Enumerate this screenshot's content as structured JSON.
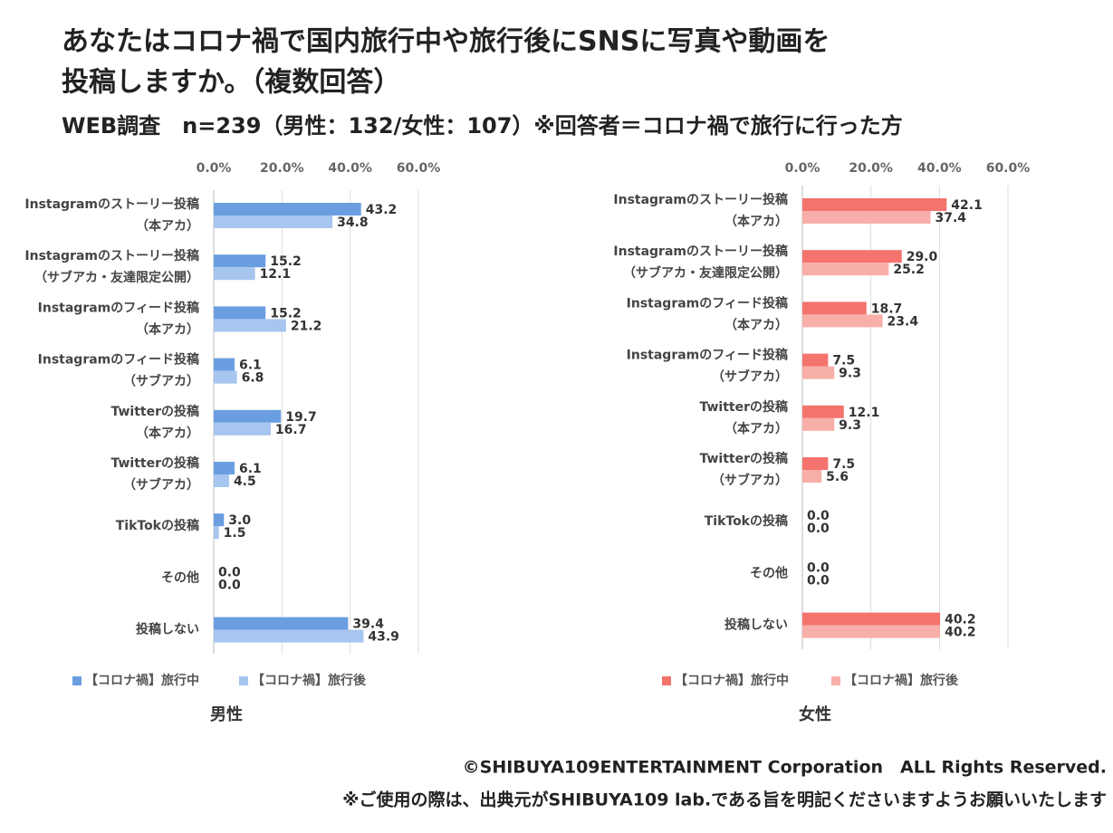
{
  "header": {
    "title_lines": [
      "あなたはコロナ禍で国内旅行中や旅行後にSNSに写真や動画を",
      "投稿しますか。（複数回答）"
    ],
    "subtitle": "WEB調査　n=239（男性：132/女性：107）※回答者＝コロナ禍で旅行に行った方"
  },
  "footer": [
    "©SHIBUYA109ENTERTAINMENT Corporation　ALL Rights Reserved.",
    "※ご使用の際は、出典元がSHIBUYA109 lab.である旨を明記くださいますようお願いいたします"
  ],
  "chart_data": [
    {
      "type": "bar",
      "orientation": "horizontal",
      "title": "男性",
      "categories": [
        "Instagramのストーリー投稿\n（本アカ）",
        "Instagramのストーリー投稿\n（サブアカ・友達限定公開）",
        "Instagramのフィード投稿\n（本アカ）",
        "Instagramのフィード投稿\n（サブアカ）",
        "Twitterの投稿\n（本アカ）",
        "Twitterの投稿\n（サブアカ）",
        "TikTokの投稿",
        "その他",
        "投稿しない"
      ],
      "series": [
        {
          "name": "【コロナ禍】旅行中",
          "color": "#6a9ee0",
          "values": [
            43.2,
            15.2,
            15.2,
            6.1,
            19.7,
            6.1,
            3.0,
            0.0,
            39.4
          ],
          "value_labels": [
            "43.2",
            "15.2",
            "15.2",
            "6.1",
            "19.7",
            "6.1",
            "3.0",
            "0.0",
            "39.4"
          ]
        },
        {
          "name": "【コロナ禍】旅行後",
          "color": "#a6c6ef",
          "values": [
            34.8,
            12.1,
            21.2,
            6.8,
            16.7,
            4.5,
            1.5,
            0.0,
            43.9
          ],
          "value_labels": [
            "34.8",
            "12.1",
            "21.2",
            "6.8",
            "16.7",
            "4.5",
            "1.5",
            "0.0",
            "43.9"
          ]
        }
      ],
      "xlim": [
        0,
        60
      ],
      "xticks": [
        {
          "value": 0,
          "label": "0.0%"
        },
        {
          "value": 20,
          "label": "20.0%"
        },
        {
          "value": 40,
          "label": "40.0%"
        },
        {
          "value": 60,
          "label": "60.0%"
        }
      ],
      "grid": true,
      "legend": "bottom"
    },
    {
      "type": "bar",
      "orientation": "horizontal",
      "title": "女性",
      "categories": [
        "Instagramのストーリー投稿\n（本アカ）",
        "Instagramのストーリー投稿\n（サブアカ・友達限定公開）",
        "Instagramのフィード投稿\n（本アカ）",
        "Instagramのフィード投稿\n（サブアカ）",
        "Twitterの投稿\n（本アカ）",
        "Twitterの投稿\n（サブアカ）",
        "TikTokの投稿",
        "その他",
        "投稿しない"
      ],
      "series": [
        {
          "name": "【コロナ禍】旅行中",
          "color": "#f4736d",
          "values": [
            42.1,
            29.0,
            18.7,
            7.5,
            12.1,
            7.5,
            0.0,
            0.0,
            40.2
          ],
          "value_labels": [
            "42.1",
            "29.0",
            "18.7",
            "7.5",
            "12.1",
            "7.5",
            "0.0",
            "0.0",
            "40.2"
          ]
        },
        {
          "name": "【コロナ禍】旅行後",
          "color": "#f8aea9",
          "values": [
            37.4,
            25.2,
            23.4,
            9.3,
            9.3,
            5.6,
            0.0,
            0.0,
            40.2
          ],
          "value_labels": [
            "37.4",
            "25.2",
            "23.4",
            "9.3",
            "9.3",
            "5.6",
            "0.0",
            "0.0",
            "40.2"
          ]
        }
      ],
      "xlim": [
        0,
        60
      ],
      "xticks": [
        {
          "value": 0,
          "label": "0.0%"
        },
        {
          "value": 20,
          "label": "20.0%"
        },
        {
          "value": 40,
          "label": "40.0%"
        },
        {
          "value": 60,
          "label": "60.0%"
        }
      ],
      "grid": true,
      "legend": "bottom"
    }
  ]
}
